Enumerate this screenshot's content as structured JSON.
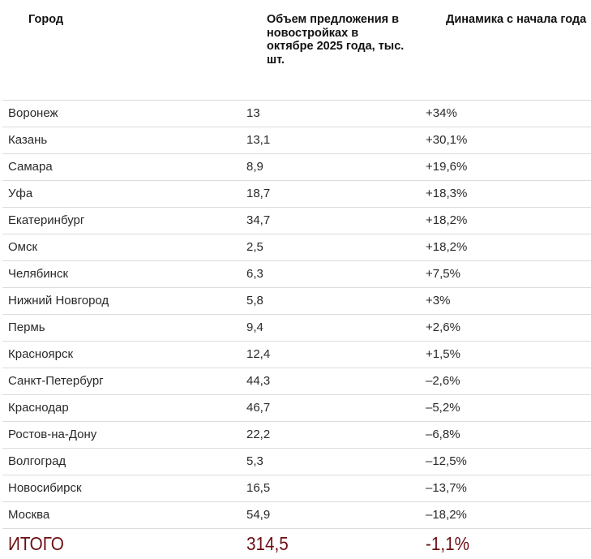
{
  "header": {
    "col_city": "Город",
    "col_volume": "Объем предложения в новостройках в октябре 2025 года, тыс. шт.",
    "col_dynamics": "Динамика с начала года"
  },
  "rows": [
    {
      "city": "Воронеж",
      "volume": "13",
      "dynamics": "+34%"
    },
    {
      "city": "Казань",
      "volume": "13,1",
      "dynamics": "+30,1%"
    },
    {
      "city": "Самара",
      "volume": "8,9",
      "dynamics": "+19,6%"
    },
    {
      "city": "Уфа",
      "volume": "18,7",
      "dynamics": "+18,3%"
    },
    {
      "city": "Екатеринбург",
      "volume": "34,7",
      "dynamics": "+18,2%"
    },
    {
      "city": "Омск",
      "volume": "2,5",
      "dynamics": "+18,2%"
    },
    {
      "city": "Челябинск",
      "volume": "6,3",
      "dynamics": "+7,5%"
    },
    {
      "city": "Нижний Новгород",
      "volume": "5,8",
      "dynamics": "+3%"
    },
    {
      "city": "Пермь",
      "volume": "9,4",
      "dynamics": "+2,6%"
    },
    {
      "city": "Красноярск",
      "volume": "12,4",
      "dynamics": "+1,5%"
    },
    {
      "city": "Санкт-Петербург",
      "volume": "44,3",
      "dynamics": "–2,6%"
    },
    {
      "city": "Краснодар",
      "volume": "46,7",
      "dynamics": "–5,2%"
    },
    {
      "city": "Ростов-на-Дону",
      "volume": "22,2",
      "dynamics": "–6,8%"
    },
    {
      "city": "Волгоград",
      "volume": "5,3",
      "dynamics": "–12,5%"
    },
    {
      "city": "Новосибирск",
      "volume": "16,5",
      "dynamics": "–13,7%"
    },
    {
      "city": "Москва",
      "volume": "54,9",
      "dynamics": "–18,2%"
    }
  ],
  "total": {
    "label": "ИТОГО",
    "volume": "314,5",
    "dynamics": "-1,1%"
  },
  "colors": {
    "total_text": "#6b0f14",
    "divider": "#dcdcdc"
  }
}
